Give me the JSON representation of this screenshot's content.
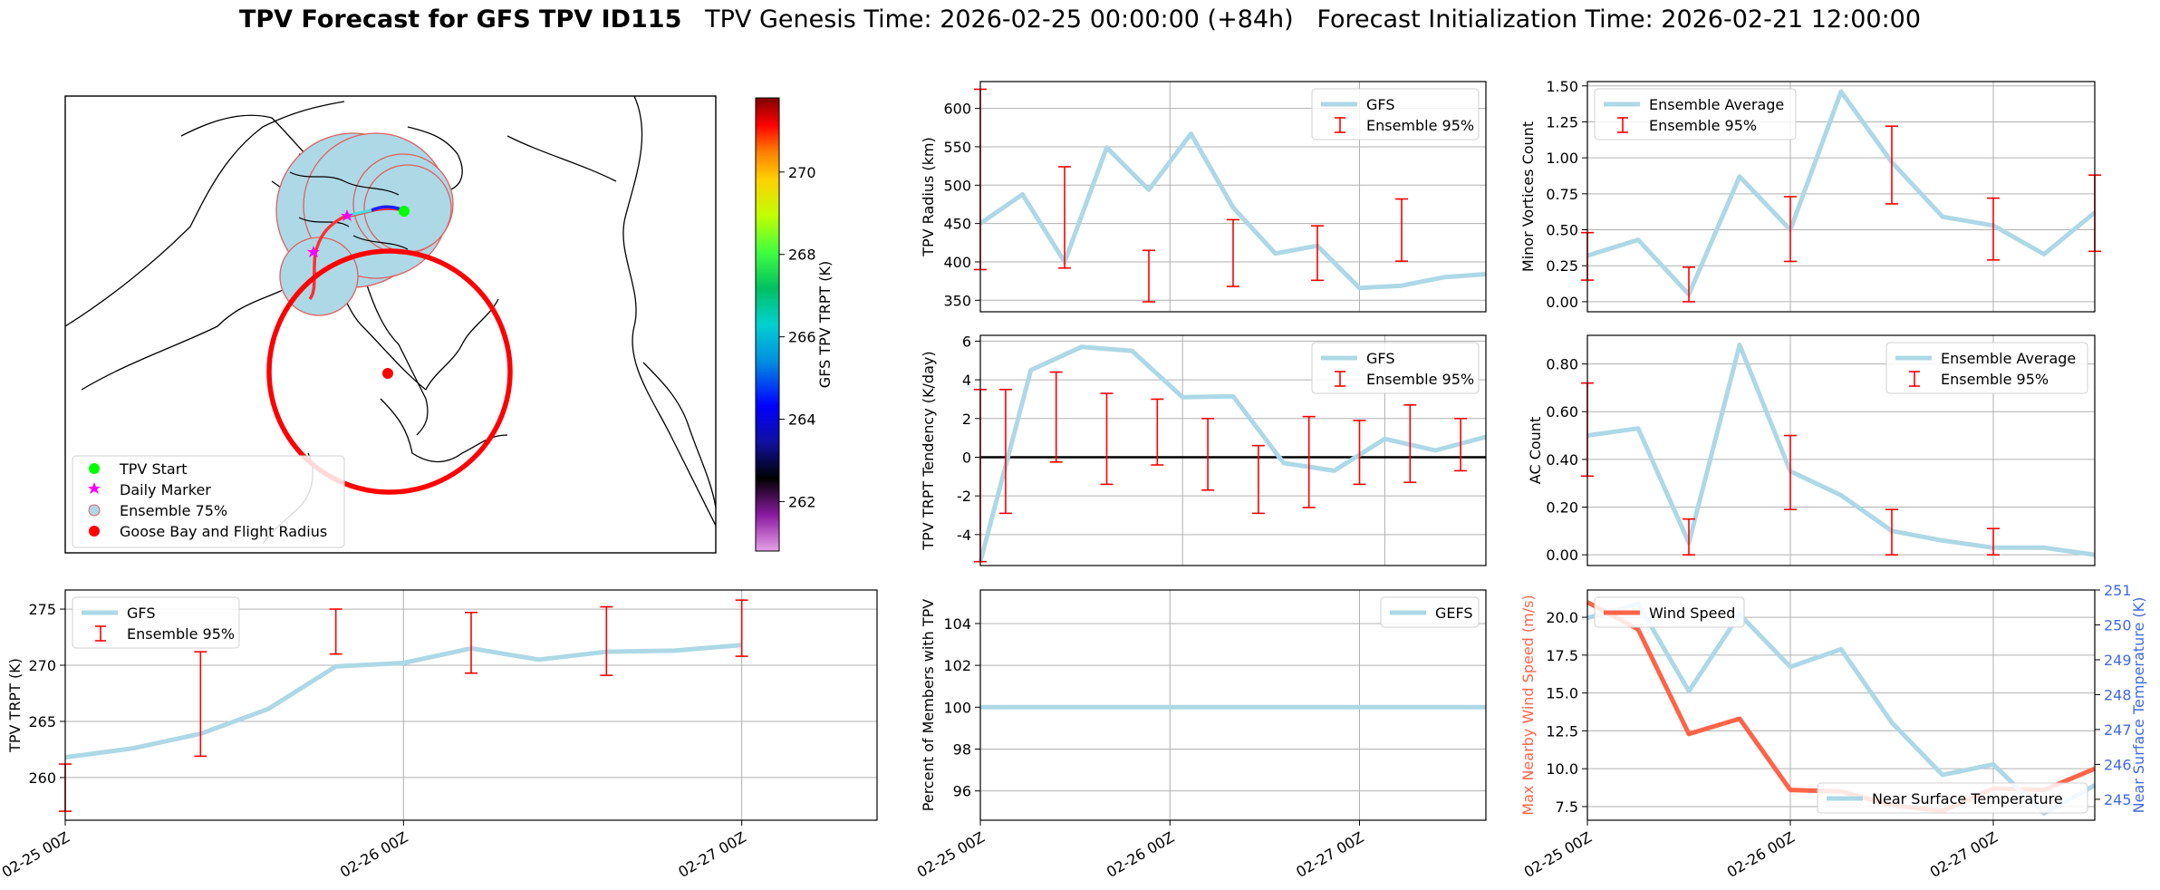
{
  "figure": {
    "title_bold": "TPV Forecast for GFS TPV ID115",
    "title_genesis": "TPV Genesis Time: 2026-02-25 00:00:00 (+84h)",
    "title_init": "Forecast Initialization Time: 2026-02-21 12:00:00",
    "colors": {
      "gfs": "#add8e6",
      "ensemble": "#ff0000",
      "wind": "#ff6347",
      "temp_axis": "#4169e1",
      "zero_line": "#000000"
    }
  },
  "chart_data": [
    {
      "id": "map",
      "type": "map",
      "colorbar": {
        "label": "GFS TPV TRPT (K)",
        "ticks": [
          262,
          264,
          266,
          268,
          270
        ],
        "range": [
          260.8,
          271.8
        ],
        "colormap": "nipy_spectral"
      },
      "legend": {
        "placement": "lower-left",
        "entries": [
          {
            "label": "TPV Start",
            "marker": "circle",
            "color": "#00ff00"
          },
          {
            "label": "Daily Marker",
            "marker": "star",
            "color": "#ff00ff"
          },
          {
            "label": "Ensemble 75%",
            "marker": "circle-outline",
            "color": "#add8e6"
          },
          {
            "label": "Goose Bay and Flight Radius",
            "marker": "circle",
            "color": "#ff0000"
          }
        ]
      }
    },
    {
      "id": "radius",
      "type": "line",
      "ylabel": "TPV Radius (km)",
      "ylim": [
        335,
        635
      ],
      "yticks": [
        350,
        400,
        450,
        500,
        550,
        600
      ],
      "legend": {
        "placement": "top-right",
        "entries": [
          "GFS",
          "Ensemble 95%"
        ]
      },
      "x": [
        0,
        0.125,
        0.25,
        0.375,
        0.5,
        0.625,
        0.75,
        0.875,
        1.0,
        1.125,
        1.25,
        1.375,
        1.5
      ],
      "series": [
        {
          "name": "GFS",
          "values": [
            450,
            488,
            400,
            549,
            494,
            567,
            471,
            411,
            421,
            366,
            369,
            380,
            384
          ]
        }
      ],
      "errorbars": [
        {
          "x": 0,
          "low": 390,
          "high": 625
        },
        {
          "x": 0.25,
          "low": 392,
          "high": 524
        },
        {
          "x": 0.5,
          "low": 348,
          "high": 415
        },
        {
          "x": 0.75,
          "low": 368,
          "high": 455
        },
        {
          "x": 1.0,
          "low": 376,
          "high": 447
        },
        {
          "x": 1.25,
          "low": 401,
          "high": 482
        }
      ]
    },
    {
      "id": "minor",
      "type": "line",
      "ylabel": "Minor Vortices Count",
      "ylim": [
        -0.07,
        1.53
      ],
      "yticks": [
        0.0,
        0.25,
        0.5,
        0.75,
        1.0,
        1.25,
        1.5
      ],
      "legend": {
        "placement": "top-left",
        "entries": [
          "Ensemble Average",
          "Ensemble 95%"
        ]
      },
      "x": [
        0,
        0.125,
        0.25,
        0.375,
        0.5,
        0.625,
        0.75,
        0.875,
        1.0,
        1.125,
        1.25
      ],
      "series": [
        {
          "name": "Ensemble Average",
          "values": [
            0.32,
            0.43,
            0.05,
            0.87,
            0.5,
            1.46,
            0.97,
            0.59,
            0.53,
            0.33,
            0.62
          ]
        }
      ],
      "errorbars": [
        {
          "x": 0,
          "low": 0.15,
          "high": 0.48
        },
        {
          "x": 0.25,
          "low": 0.0,
          "high": 0.24
        },
        {
          "x": 0.5,
          "low": 0.28,
          "high": 0.73
        },
        {
          "x": 0.75,
          "low": 0.68,
          "high": 1.22
        },
        {
          "x": 1.0,
          "low": 0.29,
          "high": 0.72
        },
        {
          "x": 1.25,
          "low": 0.35,
          "high": 0.88
        }
      ]
    },
    {
      "id": "tendency",
      "type": "line",
      "ylabel": "TPV TRPT Tendency (K/day)",
      "ylim": [
        -5.6,
        6.3
      ],
      "yticks": [
        -4,
        -2,
        0,
        2,
        4,
        6
      ],
      "zero_line": 0,
      "legend": {
        "placement": "top-right",
        "entries": [
          "GFS",
          "Ensemble 95%"
        ]
      },
      "x": [
        0,
        0.125,
        0.25,
        0.375,
        0.5,
        0.625,
        0.75,
        0.875,
        1.0,
        1.125,
        1.25
      ],
      "series": [
        {
          "name": "GFS",
          "values": [
            -5.4,
            4.5,
            5.7,
            5.5,
            3.1,
            3.15,
            -0.3,
            -0.7,
            0.95,
            0.35,
            1.05
          ]
        }
      ],
      "errorbars": [
        {
          "x": 0,
          "low": -5.4,
          "high": 3.5
        },
        {
          "x": 0.0625,
          "low": -2.9,
          "high": 3.5
        },
        {
          "x": 0.1875,
          "low": -0.25,
          "high": 4.4
        },
        {
          "x": 0.3125,
          "low": -1.4,
          "high": 3.3
        },
        {
          "x": 0.4375,
          "low": -0.4,
          "high": 3.0
        },
        {
          "x": 0.5625,
          "low": -1.7,
          "high": 2.0
        },
        {
          "x": 0.6875,
          "low": -2.9,
          "high": 0.6
        },
        {
          "x": 0.8125,
          "low": -2.6,
          "high": 2.1
        },
        {
          "x": 0.9375,
          "low": -1.4,
          "high": 1.9
        },
        {
          "x": 1.0625,
          "low": -1.3,
          "high": 2.7
        },
        {
          "x": 1.1875,
          "low": -0.7,
          "high": 2.0
        }
      ]
    },
    {
      "id": "ac",
      "type": "line",
      "ylabel": "AC Count",
      "ylim": [
        -0.045,
        0.92
      ],
      "yticks": [
        0.0,
        0.2,
        0.4,
        0.6,
        0.8
      ],
      "legend": {
        "placement": "top-right",
        "entries": [
          "Ensemble Average",
          "Ensemble 95%"
        ]
      },
      "x": [
        0,
        0.125,
        0.25,
        0.375,
        0.5,
        0.625,
        0.75,
        0.875,
        1.0,
        1.125,
        1.25
      ],
      "series": [
        {
          "name": "Ensemble Average",
          "values": [
            0.5,
            0.53,
            0.05,
            0.88,
            0.35,
            0.25,
            0.1,
            0.06,
            0.03,
            0.03,
            0.0
          ]
        }
      ],
      "errorbars": [
        {
          "x": 0,
          "low": 0.33,
          "high": 0.72
        },
        {
          "x": 0.25,
          "low": 0.0,
          "high": 0.15
        },
        {
          "x": 0.5,
          "low": 0.19,
          "high": 0.5
        },
        {
          "x": 0.75,
          "low": 0.0,
          "high": 0.19
        },
        {
          "x": 1.0,
          "low": 0.0,
          "high": 0.11
        }
      ]
    },
    {
      "id": "trpt",
      "type": "line",
      "ylabel": "TPV TRPT (K)",
      "ylim": [
        256.2,
        276.7
      ],
      "yticks": [
        260,
        265,
        270,
        275
      ],
      "xticks": [
        "02-25 00Z",
        "02-26 00Z",
        "02-27 00Z"
      ],
      "legend": {
        "placement": "top-left",
        "entries": [
          "GFS",
          "Ensemble 95%"
        ]
      },
      "x": [
        0,
        0.125,
        0.25,
        0.375,
        0.5,
        0.625,
        0.75,
        0.875,
        1.0,
        1.125,
        1.25
      ],
      "series": [
        {
          "name": "GFS",
          "values": [
            261.8,
            262.6,
            263.9,
            266.1,
            269.9,
            270.2,
            271.5,
            270.5,
            271.2,
            271.3,
            271.8
          ]
        }
      ],
      "errorbars": [
        {
          "x": 0,
          "low": 257.0,
          "high": 261.2
        },
        {
          "x": 0.25,
          "low": 261.9,
          "high": 271.2
        },
        {
          "x": 0.5,
          "low": 271.0,
          "high": 275.0
        },
        {
          "x": 0.75,
          "low": 269.3,
          "high": 274.7
        },
        {
          "x": 1.0,
          "low": 269.1,
          "high": 275.2
        },
        {
          "x": 1.25,
          "low": 270.8,
          "high": 275.8
        }
      ]
    },
    {
      "id": "percent",
      "type": "line",
      "ylabel": "Percent of Members with TPV",
      "ylim": [
        94.6,
        105.6
      ],
      "yticks": [
        96,
        98,
        100,
        102,
        104
      ],
      "xticks": [
        "02-25 00Z",
        "02-26 00Z",
        "02-27 00Z"
      ],
      "legend": {
        "placement": "top-right",
        "entries": [
          "GEFS"
        ]
      },
      "x": [
        0,
        1.5
      ],
      "series": [
        {
          "name": "GEFS",
          "values": [
            100,
            100
          ]
        }
      ]
    },
    {
      "id": "wind",
      "type": "line",
      "ylabel": "Max Nearby Wind Speed (m/s)",
      "ylabel_right": "Near Surface Temperature (K)",
      "ylim": [
        6.6,
        21.8
      ],
      "yticks": [
        7.5,
        10.0,
        12.5,
        15.0,
        17.5,
        20.0
      ],
      "ylim_right": [
        244.4,
        251.0
      ],
      "yticks_right": [
        245,
        246,
        247,
        248,
        249,
        250,
        251
      ],
      "xticks": [
        "02-25 00Z",
        "02-26 00Z",
        "02-27 00Z"
      ],
      "legend_left": {
        "placement": "top-left",
        "entries": [
          "Wind Speed"
        ]
      },
      "legend_right": {
        "placement": "lower-right",
        "entries": [
          "Near Surface Temperature"
        ]
      },
      "x": [
        0,
        0.125,
        0.25,
        0.375,
        0.5,
        0.625,
        0.75,
        0.875,
        1.0,
        1.125,
        1.25
      ],
      "series": [
        {
          "name": "Wind Speed",
          "axis": "left",
          "values": [
            21.0,
            19.2,
            12.3,
            13.3,
            8.6,
            8.5,
            7.6,
            7.2,
            8.7,
            8.6,
            10.0
          ]
        },
        {
          "name": "Near Surface Temperature",
          "axis": "right",
          "values": [
            250.2,
            250.6,
            248.1,
            250.3,
            248.8,
            249.3,
            247.2,
            245.7,
            246.0,
            244.6,
            245.4
          ]
        }
      ]
    }
  ]
}
